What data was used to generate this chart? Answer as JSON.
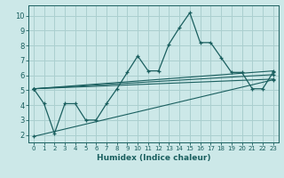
{
  "xlabel": "Humidex (Indice chaleur)",
  "background_color": "#cce8e8",
  "grid_color": "#aacfcf",
  "line_color": "#1a5f5f",
  "xlim": [
    -0.5,
    23.5
  ],
  "ylim": [
    1.5,
    10.7
  ],
  "xticks": [
    0,
    1,
    2,
    3,
    4,
    5,
    6,
    7,
    8,
    9,
    10,
    11,
    12,
    13,
    14,
    15,
    16,
    17,
    18,
    19,
    20,
    21,
    22,
    23
  ],
  "yticks": [
    2,
    3,
    4,
    5,
    6,
    7,
    8,
    9,
    10
  ],
  "series1_x": [
    0,
    1,
    2,
    3,
    4,
    5,
    6,
    7,
    8,
    9,
    10,
    11,
    12,
    13,
    14,
    15,
    16,
    17,
    18,
    19,
    20,
    21,
    22,
    23
  ],
  "series1_y": [
    5.1,
    4.1,
    2.1,
    4.1,
    4.1,
    3.0,
    3.0,
    4.1,
    5.1,
    6.2,
    7.3,
    6.3,
    6.3,
    8.1,
    9.2,
    10.2,
    8.2,
    8.2,
    7.2,
    6.2,
    6.2,
    5.1,
    5.1,
    6.2
  ],
  "series2_x": [
    0,
    23
  ],
  "series2_y": [
    5.1,
    6.3
  ],
  "series3_x": [
    0,
    23
  ],
  "series3_y": [
    5.1,
    6.05
  ],
  "series4_x": [
    0,
    23
  ],
  "series4_y": [
    5.1,
    5.75
  ],
  "series5_x": [
    0,
    23
  ],
  "series5_y": [
    1.9,
    5.7
  ]
}
